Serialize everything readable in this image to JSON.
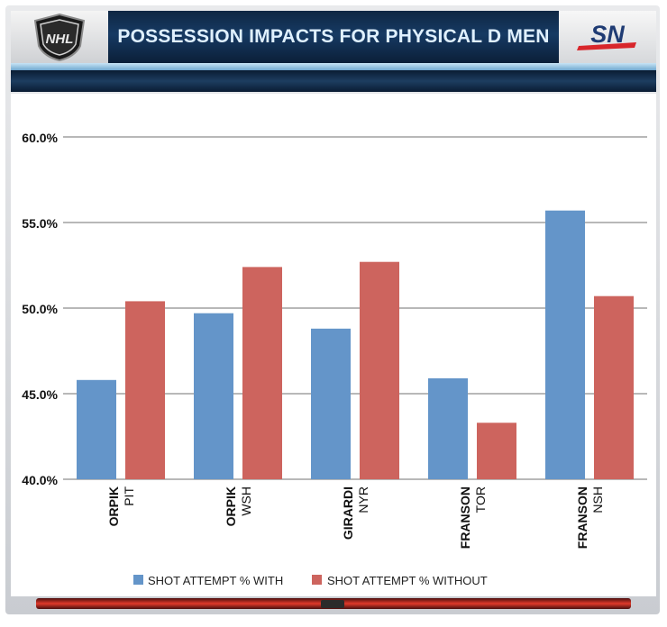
{
  "header": {
    "title": "POSSESSION IMPACTS FOR PHYSICAL D MEN",
    "left_logo": "nhl-shield-logo",
    "right_logo": "sn-logo",
    "left_logo_text": "NHL",
    "right_logo_text": "SN"
  },
  "colors": {
    "with": "#6495c9",
    "without": "#cd645e",
    "grid": "#b8b8b8"
  },
  "chart_data": {
    "type": "bar",
    "title": "POSSESSION IMPACTS FOR PHYSICAL D MEN",
    "xlabel": "",
    "ylabel": "",
    "ylim": [
      40,
      60
    ],
    "yticks": [
      40,
      45,
      50,
      55,
      60
    ],
    "ytick_labels": [
      "40.0%",
      "45.0%",
      "50.0%",
      "55.0%",
      "60.0%"
    ],
    "grid": true,
    "legend_position": "bottom",
    "categories": [
      {
        "player": "ORPIK",
        "team": "PIT"
      },
      {
        "player": "ORPIK",
        "team": "WSH"
      },
      {
        "player": "GIRARDI",
        "team": "NYR"
      },
      {
        "player": "FRANSON",
        "team": "TOR"
      },
      {
        "player": "FRANSON",
        "team": "NSH"
      }
    ],
    "series": [
      {
        "name": "SHOT ATTEMPT % WITH",
        "values": [
          45.8,
          49.7,
          48.8,
          45.9,
          55.7
        ]
      },
      {
        "name": "SHOT ATTEMPT % WITHOUT",
        "values": [
          50.4,
          52.4,
          52.7,
          43.3,
          50.7
        ]
      }
    ]
  }
}
